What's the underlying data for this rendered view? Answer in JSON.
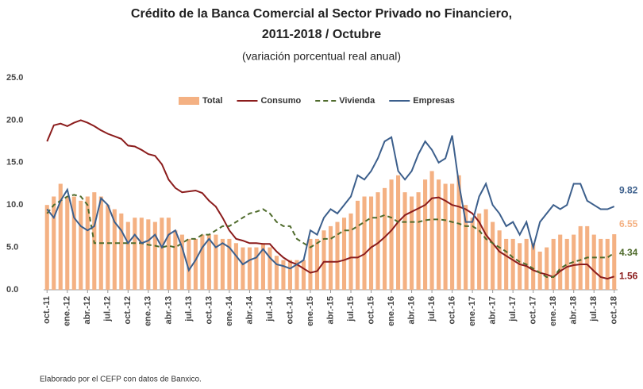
{
  "chart_data": {
    "type": "bar-line",
    "title": "Crédito de la Banca Comercial al Sector Privado no Financiero,",
    "title_line2": "2011-2018 / Octubre",
    "subtitle": "(variación porcentual real anual)",
    "source": "Elaborado por el CEFP con datos de Banxico.",
    "categories": [
      "oct.-11",
      null,
      null,
      "ene.-12",
      null,
      null,
      "abr.-12",
      null,
      null,
      "jul.-12",
      null,
      null,
      "oct.-12",
      null,
      null,
      "ene.-13",
      null,
      null,
      "abr.-13",
      null,
      null,
      "jul.-13",
      null,
      null,
      "oct.-13",
      null,
      null,
      "ene.-14",
      null,
      null,
      "abr.-14",
      null,
      null,
      "jul.-14",
      null,
      null,
      "oct.-14",
      null,
      null,
      "ene.-15",
      null,
      null,
      "abr.-15",
      null,
      null,
      "jul.-15",
      null,
      null,
      "oct.-15",
      null,
      null,
      "ene.-16",
      null,
      null,
      "abr.-16",
      null,
      null,
      "jul.-16",
      null,
      null,
      "oct.-16",
      null,
      null,
      "ene.-17",
      null,
      null,
      "abr.-17",
      null,
      null,
      "jul.-17",
      null,
      null,
      "oct.-17",
      null,
      null,
      "ene.-18",
      null,
      null,
      "abr.-18",
      null,
      null,
      "jul.-18",
      null,
      null,
      "oct.-18"
    ],
    "series": [
      {
        "name": "Total",
        "type": "bar",
        "color": "#f4b183",
        "values": [
          10.0,
          11.0,
          12.5,
          11.0,
          11.0,
          10.5,
          11.0,
          11.5,
          11.0,
          10.0,
          9.5,
          9.0,
          8.0,
          8.5,
          8.5,
          8.3,
          8.0,
          8.5,
          8.5,
          7.0,
          6.5,
          6.0,
          6.0,
          6.5,
          6.5,
          6.5,
          6.0,
          6.0,
          5.5,
          5.0,
          5.0,
          5.0,
          5.5,
          5.0,
          4.0,
          3.5,
          3.5,
          3.5,
          3.5,
          6.0,
          6.0,
          7.0,
          7.5,
          8.0,
          8.5,
          9.0,
          10.5,
          11.0,
          11.0,
          11.5,
          12.0,
          13.0,
          13.5,
          11.5,
          11.0,
          11.5,
          13.0,
          14.0,
          13.0,
          12.5,
          12.5,
          13.5,
          10.0,
          8.5,
          9.0,
          9.5,
          8.0,
          7.0,
          6.0,
          6.0,
          5.5,
          6.0,
          5.5,
          4.5,
          5.0,
          6.0,
          6.5,
          6.0,
          6.5,
          7.5,
          7.5,
          6.5,
          6.0,
          6.0,
          6.55
        ]
      },
      {
        "name": "Consumo",
        "type": "line",
        "style": "solid",
        "color": "#8b1c1c",
        "values": [
          17.5,
          19.4,
          19.6,
          19.3,
          19.7,
          20.0,
          19.7,
          19.3,
          18.8,
          18.4,
          18.1,
          17.8,
          17.0,
          16.9,
          16.5,
          16.0,
          15.8,
          14.8,
          13.0,
          12.0,
          11.5,
          11.6,
          11.7,
          11.4,
          10.5,
          9.8,
          8.5,
          7.0,
          6.0,
          5.8,
          5.5,
          5.5,
          5.4,
          5.4,
          4.5,
          3.8,
          3.3,
          3.0,
          2.5,
          2.0,
          2.2,
          3.3,
          3.3,
          3.3,
          3.5,
          3.8,
          3.8,
          4.2,
          5.0,
          5.5,
          6.2,
          7.0,
          8.0,
          8.8,
          9.2,
          9.6,
          10.0,
          10.8,
          10.9,
          10.5,
          10.0,
          9.8,
          9.5,
          9.0,
          8.0,
          6.5,
          5.5,
          4.5,
          4.0,
          3.5,
          3.0,
          2.8,
          2.3,
          2.0,
          1.8,
          1.5,
          2.2,
          2.7,
          2.9,
          3.0,
          3.0,
          2.2,
          1.5,
          1.3,
          1.56
        ]
      },
      {
        "name": "Vivienda",
        "type": "line",
        "style": "dashed",
        "color": "#4f6b2c",
        "values": [
          9.0,
          10.0,
          10.5,
          11.0,
          11.2,
          11.0,
          10.0,
          5.5,
          5.5,
          5.5,
          5.5,
          5.5,
          5.5,
          5.5,
          5.5,
          5.3,
          5.2,
          5.0,
          5.2,
          5.0,
          5.5,
          6.0,
          6.0,
          6.5,
          6.5,
          7.0,
          7.5,
          7.5,
          8.0,
          8.5,
          9.0,
          9.2,
          9.5,
          9.0,
          8.0,
          7.5,
          7.5,
          6.0,
          5.5,
          5.0,
          5.5,
          6.0,
          6.0,
          6.5,
          7.0,
          7.0,
          7.5,
          8.0,
          8.5,
          8.5,
          8.8,
          8.5,
          8.0,
          8.0,
          8.0,
          8.0,
          8.2,
          8.3,
          8.3,
          8.2,
          8.0,
          7.8,
          7.5,
          7.5,
          7.0,
          6.0,
          5.5,
          5.0,
          4.5,
          3.8,
          3.3,
          3.0,
          2.5,
          2.0,
          1.5,
          1.5,
          2.5,
          3.0,
          3.3,
          3.5,
          3.8,
          3.8,
          3.8,
          3.8,
          4.34
        ]
      },
      {
        "name": "Empresas",
        "type": "line",
        "style": "solid",
        "color": "#3c5f8c",
        "values": [
          9.5,
          8.5,
          10.5,
          11.8,
          8.5,
          7.5,
          7.0,
          7.5,
          10.8,
          10.0,
          8.0,
          7.0,
          5.5,
          6.5,
          5.5,
          5.8,
          6.5,
          5.0,
          6.5,
          7.0,
          5.0,
          2.3,
          3.5,
          5.0,
          6.0,
          5.0,
          5.5,
          5.0,
          4.0,
          3.0,
          3.5,
          3.8,
          4.8,
          3.8,
          3.0,
          2.8,
          2.5,
          3.0,
          3.5,
          7.0,
          6.5,
          8.5,
          9.5,
          9.0,
          10.0,
          11.0,
          13.5,
          13.0,
          14.0,
          15.5,
          17.5,
          18.0,
          14.0,
          13.0,
          14.0,
          16.0,
          17.5,
          16.5,
          15.0,
          15.5,
          18.2,
          12.5,
          8.0,
          8.0,
          11.0,
          12.5,
          10.0,
          9.0,
          7.5,
          8.0,
          6.5,
          8.0,
          5.0,
          8.0,
          9.0,
          10.0,
          9.5,
          10.0,
          12.5,
          12.5,
          10.5,
          10.0,
          9.5,
          9.5,
          9.82
        ]
      }
    ],
    "ylim": [
      0,
      25
    ],
    "yticks": [
      {
        "value": 0,
        "label": "0.0"
      },
      {
        "value": 5,
        "label": "5.0"
      },
      {
        "value": 10,
        "label": "10.0"
      },
      {
        "value": 15,
        "label": "15.0"
      },
      {
        "value": 20,
        "label": "20.0"
      },
      {
        "value": 25,
        "label": "25.0"
      }
    ],
    "grid": false,
    "legend": "top",
    "end_labels": true
  }
}
